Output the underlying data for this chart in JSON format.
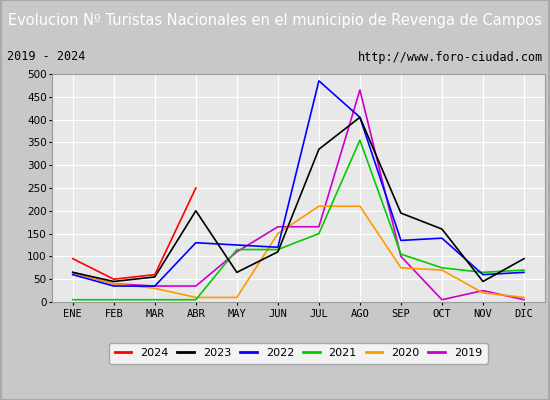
{
  "title": "Evolucion Nº Turistas Nacionales en el municipio de Revenga de Campos",
  "subtitle_left": "2019 - 2024",
  "subtitle_right": "http://www.foro-ciudad.com",
  "months": [
    "ENE",
    "FEB",
    "MAR",
    "ABR",
    "MAY",
    "JUN",
    "JUL",
    "AGO",
    "SEP",
    "OCT",
    "NOV",
    "DIC"
  ],
  "ylim": [
    0,
    500
  ],
  "yticks": [
    0,
    50,
    100,
    150,
    200,
    250,
    300,
    350,
    400,
    450,
    500
  ],
  "series": {
    "2024": {
      "values": [
        95,
        50,
        60,
        250,
        null,
        null,
        null,
        null,
        null,
        null,
        null,
        null
      ],
      "color": "#ff0000",
      "lw": 1.2
    },
    "2023": {
      "values": [
        65,
        45,
        55,
        200,
        65,
        110,
        335,
        405,
        195,
        160,
        45,
        95
      ],
      "color": "#000000",
      "lw": 1.2
    },
    "2022": {
      "values": [
        60,
        35,
        35,
        130,
        125,
        120,
        485,
        405,
        135,
        140,
        60,
        65
      ],
      "color": "#0000ff",
      "lw": 1.2
    },
    "2021": {
      "values": [
        5,
        5,
        5,
        5,
        115,
        115,
        150,
        355,
        105,
        75,
        65,
        70
      ],
      "color": "#00cc00",
      "lw": 1.2
    },
    "2020": {
      "values": [
        65,
        40,
        30,
        10,
        10,
        150,
        210,
        210,
        75,
        70,
        20,
        10
      ],
      "color": "#ff9900",
      "lw": 1.2
    },
    "2019": {
      "values": [
        65,
        40,
        35,
        35,
        110,
        165,
        165,
        465,
        100,
        5,
        25,
        5
      ],
      "color": "#cc00cc",
      "lw": 1.2
    }
  },
  "title_bg_color": "#5b8dd9",
  "title_font_color": "#ffffff",
  "title_fontsize": 10.5,
  "info_bg_color": "#f0f0f0",
  "plot_bg_color": "#e8e8e8",
  "grid_color": "#ffffff",
  "legend_order": [
    "2024",
    "2023",
    "2022",
    "2021",
    "2020",
    "2019"
  ],
  "outer_bg": "#c8c8c8"
}
